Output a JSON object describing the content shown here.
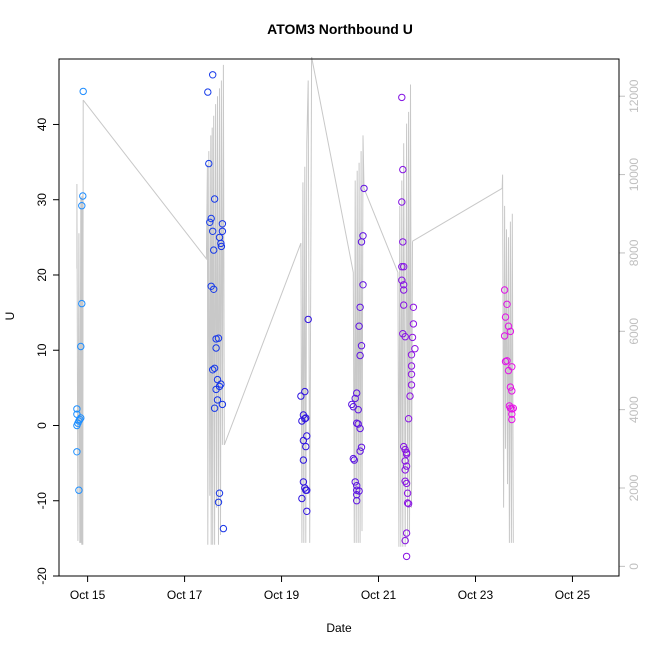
{
  "chart_data": {
    "type": "scatter",
    "title": "ATOM3 Northbound U",
    "xlabel": "Date",
    "ylabel": "U",
    "x_ticks": [
      "Oct 15",
      "Oct 17",
      "Oct 19",
      "Oct 21",
      "Oct 23",
      "Oct 25"
    ],
    "y_ticks": [
      "-20",
      "-10",
      "0",
      "10",
      "20",
      "30",
      "40"
    ],
    "y2_ticks": [
      "0",
      "2000",
      "4000",
      "6000",
      "8000",
      "10000",
      "12000"
    ],
    "x_unit": "days since Oct 14 00:00",
    "xlim": [
      0.41,
      11.96
    ],
    "ylim": [
      -20,
      48.7
    ],
    "y2lim": [
      -246,
      12950
    ],
    "grid": false,
    "point_style": "open circle",
    "colors": {
      "scatter_gradient": [
        "#1e90ff",
        "#1414e0",
        "#e614e6"
      ],
      "secondary_line": "#c8c8c8",
      "secondary_axis": "#bfbfbf",
      "axis": "#000000"
    },
    "points": [
      [
        0.78,
        2.2
      ],
      [
        0.78,
        1.5
      ],
      [
        0.78,
        0.0
      ],
      [
        0.8,
        0.3
      ],
      [
        0.82,
        0.6
      ],
      [
        0.84,
        0.8
      ],
      [
        0.86,
        1.0
      ],
      [
        0.78,
        -3.5
      ],
      [
        0.82,
        -8.6
      ],
      [
        0.86,
        10.5
      ],
      [
        0.88,
        16.2
      ],
      [
        0.88,
        29.2
      ],
      [
        0.9,
        30.5
      ],
      [
        0.91,
        44.4
      ],
      [
        3.48,
        44.3
      ],
      [
        3.5,
        34.8
      ],
      [
        3.52,
        27.0
      ],
      [
        3.55,
        27.5
      ],
      [
        3.58,
        25.8
      ],
      [
        3.6,
        23.3
      ],
      [
        3.55,
        18.5
      ],
      [
        3.6,
        18.1
      ],
      [
        3.62,
        30.1
      ],
      [
        3.58,
        46.6
      ],
      [
        3.58,
        7.4
      ],
      [
        3.62,
        7.6
      ],
      [
        3.65,
        4.8
      ],
      [
        3.62,
        2.3
      ],
      [
        3.68,
        3.4
      ],
      [
        3.65,
        11.5
      ],
      [
        3.7,
        11.6
      ],
      [
        3.68,
        6.1
      ],
      [
        3.65,
        10.3
      ],
      [
        3.72,
        5.2
      ],
      [
        3.75,
        5.5
      ],
      [
        3.72,
        25.0
      ],
      [
        3.75,
        24.2
      ],
      [
        3.76,
        23.8
      ],
      [
        3.78,
        25.8
      ],
      [
        3.78,
        26.8
      ],
      [
        3.78,
        2.8
      ],
      [
        3.72,
        -9.0
      ],
      [
        3.7,
        -10.2
      ],
      [
        3.8,
        -13.7
      ],
      [
        5.4,
        3.9
      ],
      [
        5.42,
        0.6
      ],
      [
        5.45,
        1.4
      ],
      [
        5.45,
        -2.0
      ],
      [
        5.45,
        -4.6
      ],
      [
        5.48,
        4.5
      ],
      [
        5.48,
        0.9
      ],
      [
        5.5,
        1.0
      ],
      [
        5.52,
        -1.4
      ],
      [
        5.5,
        -2.8
      ],
      [
        5.45,
        -7.5
      ],
      [
        5.48,
        -8.3
      ],
      [
        5.5,
        -8.6
      ],
      [
        5.52,
        -8.6
      ],
      [
        5.42,
        -9.7
      ],
      [
        5.52,
        -11.4
      ],
      [
        5.55,
        14.1
      ],
      [
        6.45,
        2.8
      ],
      [
        6.48,
        2.5
      ],
      [
        6.48,
        -4.4
      ],
      [
        6.5,
        -4.6
      ],
      [
        6.52,
        3.6
      ],
      [
        6.55,
        4.3
      ],
      [
        6.55,
        0.3
      ],
      [
        6.58,
        0.2
      ],
      [
        6.62,
        -0.4
      ],
      [
        6.58,
        2.1
      ],
      [
        6.52,
        -7.5
      ],
      [
        6.55,
        -8.0
      ],
      [
        6.55,
        -8.6
      ],
      [
        6.6,
        -8.7
      ],
      [
        6.55,
        -9.2
      ],
      [
        6.55,
        -10.0
      ],
      [
        6.62,
        -3.4
      ],
      [
        6.65,
        -2.9
      ],
      [
        6.62,
        9.3
      ],
      [
        6.65,
        10.6
      ],
      [
        6.6,
        13.2
      ],
      [
        6.62,
        15.7
      ],
      [
        6.68,
        18.7
      ],
      [
        6.65,
        24.4
      ],
      [
        6.68,
        25.2
      ],
      [
        6.7,
        31.5
      ],
      [
        7.48,
        43.6
      ],
      [
        7.5,
        34.0
      ],
      [
        7.48,
        29.7
      ],
      [
        7.5,
        24.4
      ],
      [
        7.48,
        21.1
      ],
      [
        7.52,
        21.1
      ],
      [
        7.48,
        19.3
      ],
      [
        7.52,
        18.7
      ],
      [
        7.52,
        18.0
      ],
      [
        7.52,
        16.0
      ],
      [
        7.5,
        12.2
      ],
      [
        7.55,
        11.8
      ],
      [
        7.52,
        -2.8
      ],
      [
        7.55,
        -3.2
      ],
      [
        7.58,
        -3.6
      ],
      [
        7.58,
        -3.8
      ],
      [
        7.55,
        -4.7
      ],
      [
        7.58,
        -5.4
      ],
      [
        7.55,
        -5.9
      ],
      [
        7.55,
        -7.4
      ],
      [
        7.58,
        -7.7
      ],
      [
        7.6,
        -9.0
      ],
      [
        7.6,
        -10.3
      ],
      [
        7.62,
        -10.4
      ],
      [
        7.58,
        -14.3
      ],
      [
        7.55,
        -15.3
      ],
      [
        7.58,
        -17.4
      ],
      [
        7.62,
        0.9
      ],
      [
        7.65,
        3.9
      ],
      [
        7.68,
        5.4
      ],
      [
        7.68,
        6.8
      ],
      [
        7.68,
        7.9
      ],
      [
        7.68,
        9.4
      ],
      [
        7.7,
        11.7
      ],
      [
        7.72,
        13.5
      ],
      [
        7.72,
        15.7
      ],
      [
        7.75,
        10.2
      ],
      [
        9.6,
        18.0
      ],
      [
        9.62,
        14.4
      ],
      [
        9.6,
        11.9
      ],
      [
        9.62,
        8.5
      ],
      [
        9.65,
        8.6
      ],
      [
        9.65,
        16.1
      ],
      [
        9.68,
        13.2
      ],
      [
        9.72,
        12.5
      ],
      [
        9.68,
        7.3
      ],
      [
        9.72,
        5.1
      ],
      [
        9.75,
        7.8
      ],
      [
        9.75,
        4.6
      ],
      [
        9.7,
        2.6
      ],
      [
        9.72,
        2.3
      ],
      [
        9.75,
        2.2
      ],
      [
        9.75,
        1.5
      ],
      [
        9.78,
        2.3
      ],
      [
        9.75,
        0.8
      ]
    ],
    "secondary_series": {
      "name": "",
      "segments": [
        [
          [
            0.78,
            7600
          ],
          [
            0.78,
            9760
          ],
          [
            0.8,
            650
          ],
          [
            0.82,
            8500
          ],
          [
            0.84,
            600
          ],
          [
            0.86,
            9400
          ],
          [
            0.86,
            600
          ],
          [
            0.88,
            9450
          ],
          [
            0.88,
            550
          ],
          [
            0.9,
            9500
          ],
          [
            0.9,
            550
          ],
          [
            0.91,
            11900
          ]
        ],
        [
          [
            0.91,
            11900
          ],
          [
            3.45,
            7850
          ],
          [
            3.47,
            10250
          ],
          [
            3.48,
            550
          ],
          [
            3.5,
            10600
          ],
          [
            3.52,
            1800
          ],
          [
            3.54,
            11000
          ],
          [
            3.55,
            550
          ],
          [
            3.57,
            11200
          ],
          [
            3.58,
            550
          ],
          [
            3.6,
            11500
          ],
          [
            3.62,
            550
          ],
          [
            3.64,
            11800
          ],
          [
            3.66,
            1500
          ],
          [
            3.68,
            12000
          ],
          [
            3.7,
            550
          ],
          [
            3.72,
            12200
          ],
          [
            3.74,
            800
          ],
          [
            3.76,
            12400
          ],
          [
            3.78,
            3100
          ],
          [
            3.8,
            12800
          ],
          [
            3.82,
            3100
          ]
        ],
        [
          [
            3.82,
            3100
          ],
          [
            5.4,
            8250
          ],
          [
            5.42,
            600
          ],
          [
            5.44,
            9800
          ],
          [
            5.46,
            600
          ],
          [
            5.48,
            10200
          ],
          [
            5.5,
            600
          ],
          [
            5.52,
            10800
          ],
          [
            5.55,
            12400
          ],
          [
            5.58,
            600
          ],
          [
            5.62,
            13000
          ]
        ],
        [
          [
            5.62,
            13000
          ],
          [
            6.48,
            7500
          ],
          [
            6.5,
            600
          ],
          [
            6.52,
            9850
          ],
          [
            6.54,
            600
          ],
          [
            6.56,
            10100
          ],
          [
            6.58,
            600
          ],
          [
            6.6,
            10300
          ],
          [
            6.62,
            600
          ],
          [
            6.64,
            10600
          ],
          [
            6.66,
            900
          ],
          [
            6.68,
            11000
          ],
          [
            6.7,
            9650
          ]
        ],
        [
          [
            6.7,
            9650
          ],
          [
            7.4,
            7500
          ],
          [
            7.42,
            500
          ],
          [
            7.44,
            9200
          ],
          [
            7.46,
            500
          ],
          [
            7.48,
            9850
          ],
          [
            7.5,
            500
          ],
          [
            7.52,
            10800
          ],
          [
            7.55,
            500
          ],
          [
            7.58,
            11300
          ],
          [
            7.6,
            600
          ],
          [
            7.62,
            11600
          ],
          [
            7.64,
            800
          ],
          [
            7.66,
            12300
          ],
          [
            7.68,
            1500
          ],
          [
            7.7,
            8300
          ]
        ],
        [
          [
            7.7,
            8300
          ],
          [
            9.55,
            9650
          ],
          [
            9.56,
            10000
          ],
          [
            9.58,
            1500
          ],
          [
            9.6,
            9200
          ],
          [
            9.62,
            3000
          ],
          [
            9.64,
            8600
          ],
          [
            9.66,
            2100
          ],
          [
            9.68,
            8400
          ],
          [
            9.7,
            600
          ],
          [
            9.72,
            8800
          ],
          [
            9.74,
            600
          ],
          [
            9.76,
            9000
          ],
          [
            9.78,
            600
          ]
        ]
      ]
    }
  }
}
